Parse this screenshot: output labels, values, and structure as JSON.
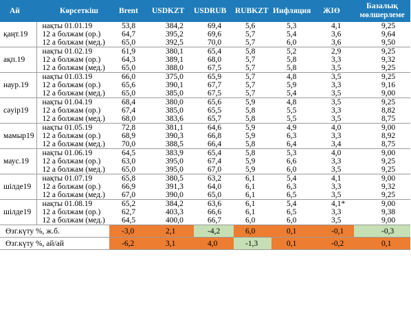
{
  "header": {
    "month": "Ай",
    "indicator": "Көрсеткіш",
    "brent": "Brent",
    "usdkzt": "USDKZT",
    "usdrub": "USDRUB",
    "rubkzt": "RUBKZT",
    "inflation": "Инфляция",
    "gdp": "ЖІӨ",
    "base_rate_line1": "Базалық",
    "base_rate_line2": "мөлшерлеме"
  },
  "groups": [
    {
      "month": "қаңт.19",
      "rows": [
        {
          "indicator": "нақты 01.01.19",
          "brent": "53,8",
          "usdkzt": "384,2",
          "usdrub": "69,4",
          "rubkzt": "5,6",
          "inflation": "5,3",
          "gdp": "4,1",
          "rate": "9,25"
        },
        {
          "indicator": "12 а болжам (ор.)",
          "brent": "64,7",
          "usdkzt": "395,2",
          "usdrub": "69,6",
          "rubkzt": "5,7",
          "inflation": "5,4",
          "gdp": "3,6",
          "rate": "9,64"
        },
        {
          "indicator": "12 а болжам (мед.)",
          "brent": "65,0",
          "usdkzt": "392,5",
          "usdrub": "70,0",
          "rubkzt": "5,7",
          "inflation": "6,0",
          "gdp": "3,6",
          "rate": "9,50"
        }
      ]
    },
    {
      "month": "ақп.19",
      "rows": [
        {
          "indicator": "нақты 01.02.19",
          "brent": "61,9",
          "usdkzt": "380,1",
          "usdrub": "65,4",
          "rubkzt": "5,8",
          "inflation": "5,2",
          "gdp": "2,9",
          "rate": "9,25"
        },
        {
          "indicator": "12 а болжам (ор.)",
          "brent": "64,3",
          "usdkzt": "389,1",
          "usdrub": "68,0",
          "rubkzt": "5,7",
          "inflation": "5,8",
          "gdp": "3,3",
          "rate": "9,32"
        },
        {
          "indicator": "12 а болжам (мед.)",
          "brent": "65,0",
          "usdkzt": "388,0",
          "usdrub": "67,5",
          "rubkzt": "5,7",
          "inflation": "5,8",
          "gdp": "3,5",
          "rate": "9,25"
        }
      ]
    },
    {
      "month": "наур.19",
      "rows": [
        {
          "indicator": "нақты 01.03.19",
          "brent": "66,0",
          "usdkzt": "375,0",
          "usdrub": "65,9",
          "rubkzt": "5,7",
          "inflation": "4,8",
          "gdp": "3,5",
          "rate": "9,25"
        },
        {
          "indicator": "12 а болжам (ор.)",
          "brent": "65,6",
          "usdkzt": "390,1",
          "usdrub": "67,7",
          "rubkzt": "5,7",
          "inflation": "5,9",
          "gdp": "3,3",
          "rate": "9,16"
        },
        {
          "indicator": "12 а болжам (мед.)",
          "brent": "65,0",
          "usdkzt": "385,0",
          "usdrub": "67,5",
          "rubkzt": "5,7",
          "inflation": "5,4",
          "gdp": "3,5",
          "rate": "9,00"
        }
      ]
    },
    {
      "month": "сәуір19",
      "rows": [
        {
          "indicator": "нақты 01.04.19",
          "brent": "68,4",
          "usdkzt": "380,0",
          "usdrub": "65,6",
          "rubkzt": "5,9",
          "inflation": "4,8",
          "gdp": "3,5",
          "rate": "9,25"
        },
        {
          "indicator": "12 а болжам (ор.)",
          "brent": "67,4",
          "usdkzt": "385,0",
          "usdrub": "65,5",
          "rubkzt": "5,8",
          "inflation": "5,5",
          "gdp": "3,3",
          "rate": "8,82"
        },
        {
          "indicator": "12 а болжам (мед.)",
          "brent": "68,0",
          "usdkzt": "383,6",
          "usdrub": "65,7",
          "rubkzt": "5,8",
          "inflation": "5,5",
          "gdp": "3,5",
          "rate": "8,75"
        }
      ]
    },
    {
      "month": "мамыр19",
      "rows": [
        {
          "indicator": "нақты 01.05.19",
          "brent": "72,8",
          "usdkzt": "381,1",
          "usdrub": "64,6",
          "rubkzt": "5,9",
          "inflation": "4,9",
          "gdp": "4,0",
          "rate": "9,00"
        },
        {
          "indicator": "12 а болжам (ор.)",
          "brent": "68,9",
          "usdkzt": "390,3",
          "usdrub": "66,8",
          "rubkzt": "5,9",
          "inflation": "6,3",
          "gdp": "3,3",
          "rate": "8,92"
        },
        {
          "indicator": "12 а болжам (мед.)",
          "brent": "70,0",
          "usdkzt": "388,5",
          "usdrub": "66,4",
          "rubkzt": "5,8",
          "inflation": "6,4",
          "gdp": "3,4",
          "rate": "8,75"
        }
      ]
    },
    {
      "month": "маус.19",
      "rows": [
        {
          "indicator": "нақты 01.06.19",
          "brent": "64,5",
          "usdkzt": "383,9",
          "usdrub": "65,4",
          "rubkzt": "5,8",
          "inflation": "5,3",
          "gdp": "4,0",
          "rate": "9,00"
        },
        {
          "indicator": "12 а болжам (ор.)",
          "brent": "63,0",
          "usdkzt": "395,0",
          "usdrub": "67,4",
          "rubkzt": "5,9",
          "inflation": "6,6",
          "gdp": "3,3",
          "rate": "9,25"
        },
        {
          "indicator": "12 а болжам (мед.)",
          "brent": "65,0",
          "usdkzt": "395,0",
          "usdrub": "67,0",
          "rubkzt": "5,9",
          "inflation": "6,0",
          "gdp": "3,5",
          "rate": "9,25"
        }
      ]
    },
    {
      "month": "шілде19",
      "rows": [
        {
          "indicator": "нақты 01.07.19",
          "brent": "65,8",
          "usdkzt": "380,5",
          "usdrub": "63,2",
          "rubkzt": "6,1",
          "inflation": "5,4",
          "gdp": "4,1",
          "rate": "9,00"
        },
        {
          "indicator": "12 а болжам (ор.)",
          "brent": "66,9",
          "usdkzt": "391,3",
          "usdrub": "64,0",
          "rubkzt": "6,1",
          "inflation": "6,3",
          "gdp": "3,3",
          "rate": "9,32"
        },
        {
          "indicator": "12 а болжам (мед.)",
          "brent": "67,0",
          "usdkzt": "390,0",
          "usdrub": "65,0",
          "rubkzt": "6,1",
          "inflation": "6,5",
          "gdp": "3,5",
          "rate": "9,25"
        }
      ]
    },
    {
      "month": "шілде19",
      "rows": [
        {
          "indicator": "нақты 01.08.19",
          "brent": "65,2",
          "usdkzt": "384,2",
          "usdrub": "63,6",
          "rubkzt": "6,1",
          "inflation": "5,4",
          "gdp": "4,1*",
          "rate": "9,00"
        },
        {
          "indicator": "12 а болжам (ор.)",
          "brent": "62,7",
          "usdkzt": "403,3",
          "usdrub": "66,6",
          "rubkzt": "6,1",
          "inflation": "6,5",
          "gdp": "3,3",
          "rate": "9,38"
        },
        {
          "indicator": "12 а болжам (мед.)",
          "brent": "64,5",
          "usdkzt": "400,0",
          "usdrub": "66,7",
          "rubkzt": "6,0",
          "inflation": "6,0",
          "gdp": "3,5",
          "rate": "9,00"
        }
      ]
    }
  ],
  "change_rows": [
    {
      "label": "Өзг.күту %, ж.б.",
      "brent": "-3,0",
      "usdkzt": "2,1",
      "usdrub": "-4,2",
      "rubkzt": "6,0",
      "inflation": "0,1",
      "gdp": "-0,1",
      "rate": "-0,3",
      "colors": {
        "brent": "orange",
        "usdkzt": "orange",
        "usdrub": "green",
        "rubkzt": "orange",
        "inflation": "orange",
        "gdp": "orange",
        "rate": "green"
      }
    },
    {
      "label": "Өзг.күту %, ай/ай",
      "brent": "-6,2",
      "usdkzt": "3,1",
      "usdrub": "4,0",
      "rubkzt": "-1,3",
      "inflation": "0,1",
      "gdp": "-0,2",
      "rate": "0,1",
      "colors": {
        "brent": "orange",
        "usdkzt": "orange",
        "usdrub": "orange",
        "rubkzt": "green",
        "inflation": "orange",
        "gdp": "orange",
        "rate": "orange"
      }
    }
  ],
  "palette": {
    "header_bg": "#1f7bb9",
    "orange": "#ed7d31",
    "green": "#c6dfb4"
  }
}
